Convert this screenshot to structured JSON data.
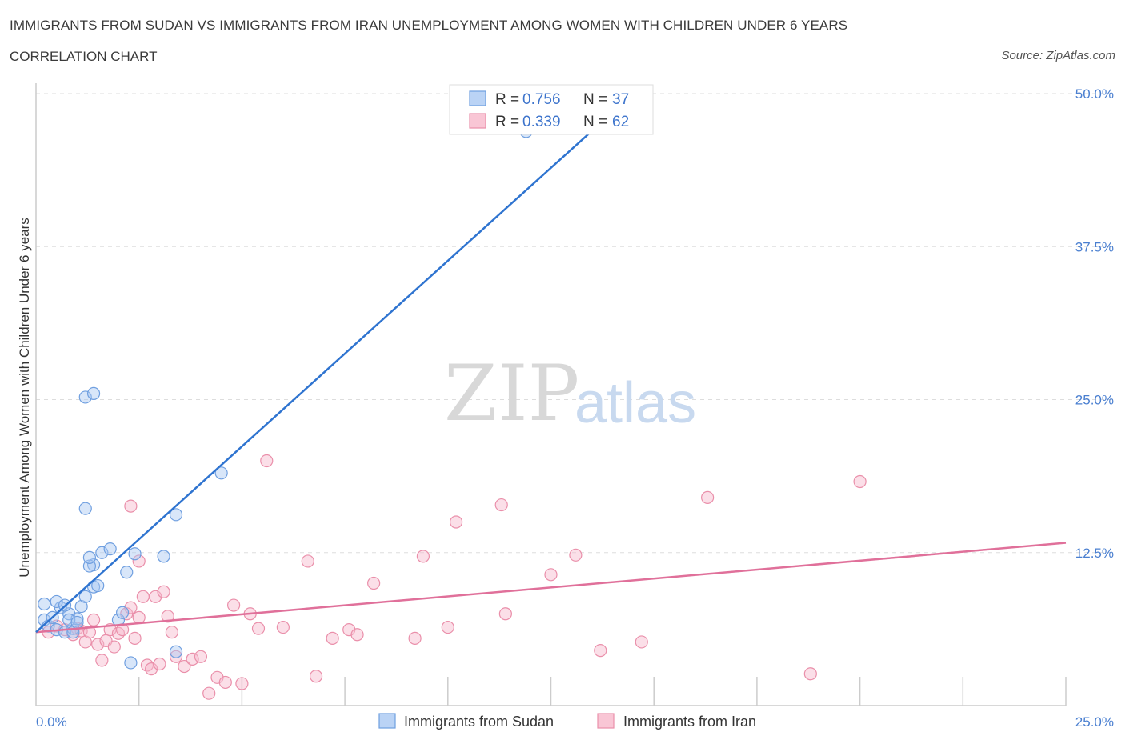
{
  "header": {
    "title": "IMMIGRANTS FROM SUDAN VS IMMIGRANTS FROM IRAN UNEMPLOYMENT AMONG WOMEN WITH CHILDREN UNDER 6 YEARS",
    "subtitle": "CORRELATION CHART",
    "source": "Source: ZipAtlas.com"
  },
  "watermark": {
    "zip": "ZIP",
    "atlas": "atlas"
  },
  "legend": {
    "rows": [
      {
        "r_label": "R =",
        "r_value": "0.756",
        "n_label": "N =",
        "n_value": "37"
      },
      {
        "r_label": "R =",
        "r_value": "0.339",
        "n_label": "N =",
        "n_value": "62"
      }
    ]
  },
  "bottom_legend": {
    "sudan": "Immigrants from Sudan",
    "iran": "Immigrants from Iran"
  },
  "colors": {
    "sudan_fill": "#a9c8f2",
    "sudan_stroke": "#6f9fe0",
    "sudan_line": "#2f74d0",
    "iran_fill": "#f7b8cb",
    "iran_stroke": "#ea8faa",
    "iran_line": "#e0709a",
    "tick": "#4a7fd0",
    "grid": "#dddddd"
  },
  "chart_data": {
    "type": "scatter",
    "title": "IMMIGRANTS FROM SUDAN VS IMMIGRANTS FROM IRAN UNEMPLOYMENT AMONG WOMEN WITH CHILDREN UNDER 6 YEARS",
    "xlabel": "",
    "ylabel": "Unemployment Among Women with Children Under 6 years",
    "xlim": [
      0,
      25
    ],
    "ylim": [
      0,
      50
    ],
    "x_tick_labels": [
      "0.0%",
      "25.0%"
    ],
    "y_ticks": [
      12.5,
      25.0,
      37.5,
      50.0
    ],
    "y_tick_labels": [
      "12.5%",
      "25.0%",
      "37.5%",
      "50.0%"
    ],
    "series": [
      {
        "name": "Immigrants from Sudan",
        "R": 0.756,
        "N": 37,
        "trend": {
          "x": [
            0.0,
            14.5
          ],
          "y": [
            6.0,
            50.0
          ]
        },
        "points": [
          [
            0.2,
            7.0
          ],
          [
            0.3,
            6.5
          ],
          [
            0.4,
            7.2
          ],
          [
            0.5,
            6.2
          ],
          [
            0.6,
            8.0
          ],
          [
            0.7,
            6.0
          ],
          [
            0.8,
            7.5
          ],
          [
            0.9,
            6.3
          ],
          [
            1.0,
            7.1
          ],
          [
            0.2,
            8.3
          ],
          [
            0.5,
            8.5
          ],
          [
            0.7,
            8.2
          ],
          [
            0.8,
            7.0
          ],
          [
            0.9,
            6.0
          ],
          [
            1.0,
            6.8
          ],
          [
            1.1,
            8.1
          ],
          [
            1.2,
            8.9
          ],
          [
            1.4,
            11.5
          ],
          [
            1.3,
            11.4
          ],
          [
            1.3,
            12.1
          ],
          [
            1.4,
            9.7
          ],
          [
            1.5,
            9.8
          ],
          [
            1.6,
            12.5
          ],
          [
            1.8,
            12.8
          ],
          [
            2.0,
            7.0
          ],
          [
            2.1,
            7.6
          ],
          [
            2.2,
            10.9
          ],
          [
            2.4,
            12.4
          ],
          [
            3.1,
            12.2
          ],
          [
            3.4,
            15.6
          ],
          [
            2.3,
            3.5
          ],
          [
            3.4,
            4.4
          ],
          [
            1.2,
            16.1
          ],
          [
            1.2,
            25.2
          ],
          [
            1.4,
            25.5
          ],
          [
            4.5,
            19.0
          ],
          [
            11.9,
            46.9
          ]
        ]
      },
      {
        "name": "Immigrants from Iran",
        "R": 0.339,
        "N": 62,
        "trend": {
          "x": [
            0.0,
            25.0
          ],
          "y": [
            6.0,
            13.3
          ]
        },
        "points": [
          [
            0.3,
            6.0
          ],
          [
            0.5,
            6.5
          ],
          [
            0.7,
            6.2
          ],
          [
            0.9,
            5.8
          ],
          [
            1.0,
            6.3
          ],
          [
            1.1,
            6.1
          ],
          [
            1.2,
            5.2
          ],
          [
            1.3,
            6.0
          ],
          [
            1.4,
            7.0
          ],
          [
            1.5,
            5.0
          ],
          [
            1.6,
            3.7
          ],
          [
            1.7,
            5.3
          ],
          [
            1.8,
            6.2
          ],
          [
            1.9,
            4.8
          ],
          [
            2.0,
            5.9
          ],
          [
            2.1,
            6.2
          ],
          [
            2.2,
            7.5
          ],
          [
            2.3,
            8.0
          ],
          [
            2.4,
            5.5
          ],
          [
            2.5,
            7.2
          ],
          [
            2.6,
            8.9
          ],
          [
            2.7,
            3.3
          ],
          [
            2.8,
            3.0
          ],
          [
            2.9,
            8.9
          ],
          [
            3.0,
            3.4
          ],
          [
            3.1,
            9.3
          ],
          [
            3.2,
            7.3
          ],
          [
            3.3,
            6.0
          ],
          [
            3.4,
            4.0
          ],
          [
            3.6,
            3.2
          ],
          [
            3.8,
            3.8
          ],
          [
            4.0,
            4.0
          ],
          [
            4.2,
            1.0
          ],
          [
            4.4,
            2.3
          ],
          [
            4.6,
            1.9
          ],
          [
            4.8,
            8.2
          ],
          [
            5.0,
            1.8
          ],
          [
            5.2,
            7.5
          ],
          [
            5.4,
            6.3
          ],
          [
            5.6,
            20.0
          ],
          [
            2.3,
            16.3
          ],
          [
            2.5,
            11.8
          ],
          [
            6.0,
            6.4
          ],
          [
            6.6,
            11.8
          ],
          [
            6.8,
            2.4
          ],
          [
            7.2,
            5.5
          ],
          [
            7.6,
            6.2
          ],
          [
            7.8,
            5.8
          ],
          [
            8.2,
            10.0
          ],
          [
            9.2,
            5.5
          ],
          [
            9.4,
            12.2
          ],
          [
            10.0,
            6.4
          ],
          [
            10.2,
            15.0
          ],
          [
            11.3,
            16.4
          ],
          [
            11.4,
            7.5
          ],
          [
            12.5,
            10.7
          ],
          [
            13.1,
            12.3
          ],
          [
            13.7,
            4.5
          ],
          [
            14.7,
            5.2
          ],
          [
            16.3,
            17.0
          ],
          [
            18.8,
            2.6
          ],
          [
            20.0,
            18.3
          ]
        ]
      }
    ],
    "legend_position": "top-center"
  }
}
